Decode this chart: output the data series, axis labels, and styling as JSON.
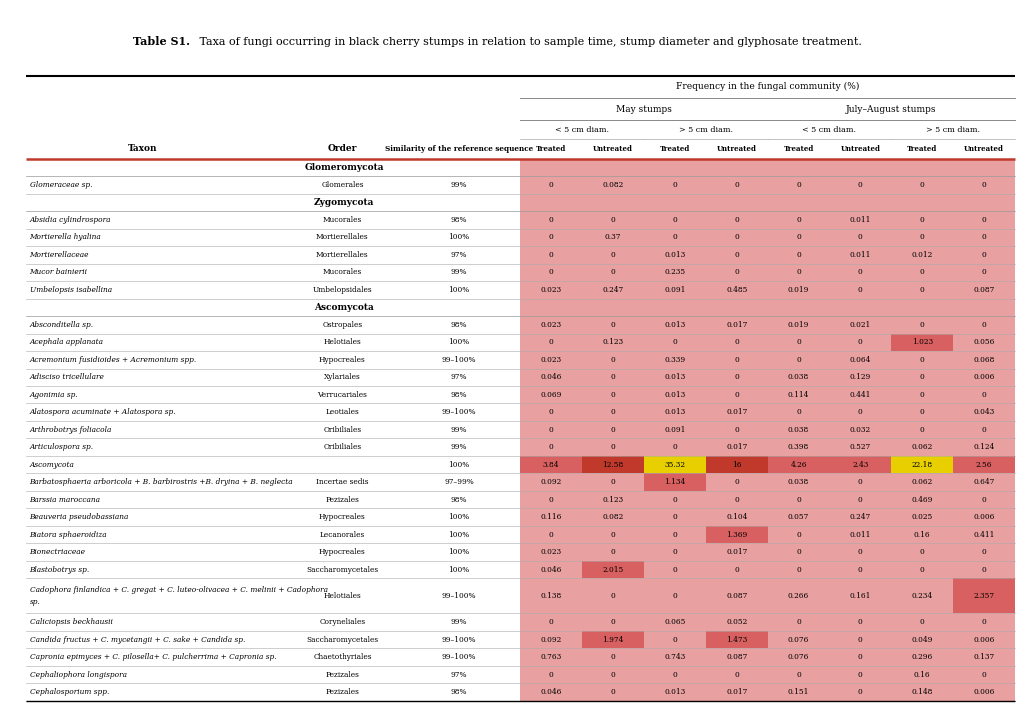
{
  "title_bold": "Table S1.",
  "title_normal": " Taxa of fungi occurring in black cherry stumps in relation to sample time, stump diameter and glyphosate treatment.",
  "header1": "Frequency in the fungal community (%)",
  "header2_left": "May stumps",
  "header2_right": "July–August stumps",
  "header3_cols": [
    "< 5 cm diam.",
    "> 5 cm diam.",
    "< 5 cm diam.",
    "> 5 cm diam."
  ],
  "treated_labels": [
    "Treated",
    "Untreated",
    "Treated",
    "Untreated",
    "Treated",
    "Untreated",
    "Treated",
    "Untreated"
  ],
  "group_rows": [
    {
      "name": "Glomeromycota",
      "type": "group"
    },
    {
      "taxon": "Glomeraceae sp.",
      "order": "Glomerales",
      "sim": "99%",
      "vals": [
        0,
        0.082,
        0,
        0,
        0,
        0,
        0,
        0
      ],
      "type": "data"
    },
    {
      "name": "Zygomycota",
      "type": "group"
    },
    {
      "taxon": "Absidia cylindrospora",
      "order": "Mucorales",
      "sim": "98%",
      "vals": [
        0,
        0,
        0,
        0,
        0,
        0.011,
        0,
        0
      ],
      "type": "data"
    },
    {
      "taxon": "Mortierella hyalina",
      "order": "Mortierellales",
      "sim": "100%",
      "vals": [
        0,
        0.37,
        0,
        0,
        0,
        0,
        0,
        0
      ],
      "type": "data"
    },
    {
      "taxon": "Mortierellaceae",
      "order": "Mortierellales",
      "sim": "97%",
      "vals": [
        0,
        0,
        0.013,
        0,
        0,
        0.011,
        0.012,
        0
      ],
      "type": "data"
    },
    {
      "taxon": "Mucor bainierii",
      "order": "Mucorales",
      "sim": "99%",
      "vals": [
        0,
        0,
        0.235,
        0,
        0,
        0,
        0,
        0
      ],
      "type": "data"
    },
    {
      "taxon": "Umbelopsis isabellina",
      "order": "Umbelopsidales",
      "sim": "100%",
      "vals": [
        0.023,
        0.247,
        0.091,
        0.485,
        0.019,
        0,
        0,
        0.087
      ],
      "type": "data"
    },
    {
      "name": "Ascomycota",
      "type": "group"
    },
    {
      "taxon": "Absconditella sp.",
      "order": "Ostropales",
      "sim": "98%",
      "vals": [
        0.023,
        0,
        0.013,
        0.017,
        0.019,
        0.021,
        0,
        0
      ],
      "type": "data"
    },
    {
      "taxon": "Acephala applanata",
      "order": "Helotiales",
      "sim": "100%",
      "vals": [
        0,
        0.123,
        0,
        0,
        0,
        0,
        1.023,
        0.056
      ],
      "type": "data"
    },
    {
      "taxon": "Acremonium fusidioides + Acremonium spp.",
      "order": "Hypocreales",
      "sim": "99–100%",
      "vals": [
        0.023,
        0,
        0.339,
        0,
        0,
        0.064,
        0,
        0.068
      ],
      "type": "data"
    },
    {
      "taxon": "Adisciso tricellulare",
      "order": "Xylariales",
      "sim": "97%",
      "vals": [
        0.046,
        0,
        0.013,
        0,
        0.038,
        0.129,
        0,
        0.006
      ],
      "type": "data"
    },
    {
      "taxon": "Agonimia sp.",
      "order": "Verrucariales",
      "sim": "98%",
      "vals": [
        0.069,
        0,
        0.013,
        0,
        0.114,
        0.441,
        0,
        0
      ],
      "type": "data"
    },
    {
      "taxon": "Alatospora acuminate + Alatospora sp.",
      "order": "Leotiales",
      "sim": "99–100%",
      "vals": [
        0,
        0,
        0.013,
        0.017,
        0,
        0,
        0,
        0.043
      ],
      "type": "data"
    },
    {
      "taxon": "Arthrobotrys foliacola",
      "order": "Oribiliales",
      "sim": "99%",
      "vals": [
        0,
        0,
        0.091,
        0,
        0.038,
        0.032,
        0,
        0
      ],
      "type": "data"
    },
    {
      "taxon": "Articulospora sp.",
      "order": "Oribiliales",
      "sim": "99%",
      "vals": [
        0,
        0,
        0,
        0.017,
        0.398,
        0.527,
        0.062,
        0.124
      ],
      "type": "data"
    },
    {
      "taxon": "Ascomycota",
      "order": "",
      "sim": "100%",
      "vals": [
        3.84,
        12.58,
        35.32,
        16.0,
        4.26,
        2.43,
        22.18,
        2.56
      ],
      "type": "data"
    },
    {
      "taxon": "Barbatosphaeria arboricola + B. barbirostris +B. dryina + B. neglecta",
      "order": "Incertae sedis",
      "sim": "97–99%",
      "vals": [
        0.092,
        0,
        1.134,
        0,
        0.038,
        0,
        0.062,
        0.647
      ],
      "type": "data"
    },
    {
      "taxon": "Barssia maroccana",
      "order": "Pezizales",
      "sim": "98%",
      "vals": [
        0,
        0.123,
        0,
        0,
        0,
        0,
        0.469,
        0
      ],
      "type": "data"
    },
    {
      "taxon": "Beauveria pseudobassiana",
      "order": "Hypocreales",
      "sim": "100%",
      "vals": [
        0.116,
        0.082,
        0,
        0.104,
        0.057,
        0.247,
        0.025,
        0.006
      ],
      "type": "data"
    },
    {
      "taxon": "Biatora sphaeroidiza",
      "order": "Lecanorales",
      "sim": "100%",
      "vals": [
        0,
        0,
        0,
        1.369,
        0,
        0.011,
        0.16,
        0.411
      ],
      "type": "data"
    },
    {
      "taxon": "Bionectriaceae",
      "order": "Hypocreales",
      "sim": "100%",
      "vals": [
        0.023,
        0,
        0,
        0.017,
        0,
        0,
        0,
        0
      ],
      "type": "data"
    },
    {
      "taxon": "Blastobotrys sp.",
      "order": "Saccharomycetales",
      "sim": "100%",
      "vals": [
        0.046,
        2.015,
        0,
        0,
        0,
        0,
        0,
        0
      ],
      "type": "data"
    },
    {
      "taxon": "Cadophora finlandica + C. gregat + C. luteo-olivacea + C. melinii + Cadophora\nsp.",
      "order": "Helotiales",
      "sim": "99–100%",
      "vals": [
        0.138,
        0,
        0,
        0.087,
        0.266,
        0.161,
        0.234,
        2.357
      ],
      "type": "data",
      "tall": true
    },
    {
      "taxon": "Caliciopsis beckhausii",
      "order": "Coryneliales",
      "sim": "99%",
      "vals": [
        0,
        0,
        0.065,
        0.052,
        0,
        0,
        0,
        0
      ],
      "type": "data"
    },
    {
      "taxon": "Candida fructus + C. mycetangii + C. sake + Candida sp.",
      "order": "Saccharomycetales",
      "sim": "99–100%",
      "vals": [
        0.092,
        1.974,
        0,
        1.473,
        0.076,
        0,
        0.049,
        0.006
      ],
      "type": "data"
    },
    {
      "taxon": "Capronia epimyces + C. pilosella+ C. pulcherrima + Capronia sp.",
      "order": "Chaetothyriales",
      "sim": "99–100%",
      "vals": [
        0.763,
        0,
        0.743,
        0.087,
        0.076,
        0,
        0.296,
        0.137
      ],
      "type": "data"
    },
    {
      "taxon": "Cephaliophora longispora",
      "order": "Pezizales",
      "sim": "97%",
      "vals": [
        0,
        0,
        0,
        0,
        0,
        0,
        0.16,
        0
      ],
      "type": "data"
    },
    {
      "taxon": "Cephalosporium spp.",
      "order": "Pezizales",
      "sim": "98%",
      "vals": [
        0.046,
        0,
        0.013,
        0.017,
        0.151,
        0,
        0.148,
        0.006
      ],
      "type": "data"
    }
  ],
  "bg_color": "#ffffff",
  "row_red": "#e8a0a0",
  "row_red_group": "#e8a0a0",
  "cell_zero_in_red": "#e8a0a0",
  "cell_nonzero_light": "#e07070",
  "cell_red_dark": "#c0392b",
  "cell_yellow": "#e8d000",
  "yellow_threshold": 20.0,
  "dark_threshold": 10.0,
  "mid_threshold": 1.0
}
